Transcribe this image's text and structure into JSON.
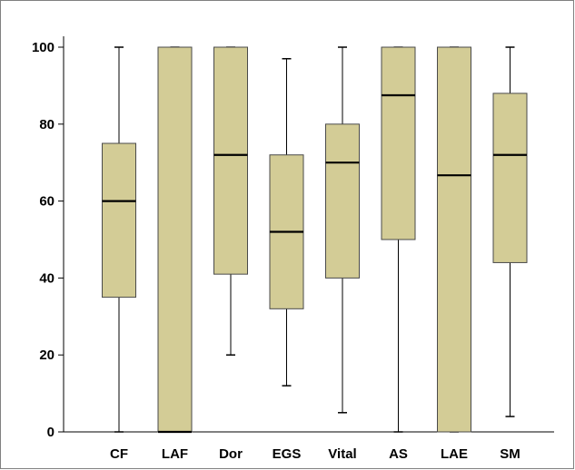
{
  "chart_data": {
    "type": "box",
    "title": "",
    "xlabel": "",
    "ylabel": "",
    "ylim": [
      0,
      100
    ],
    "yticks": [
      0,
      20,
      40,
      60,
      80,
      100
    ],
    "grid": false,
    "legend": "none",
    "categories": [
      "CF",
      "LAF",
      "Dor",
      "EGS",
      "Vital",
      "AS",
      "LAE",
      "SM"
    ],
    "boxes": [
      {
        "category": "CF",
        "min": 0,
        "q1": 35,
        "median": 60,
        "q3": 75,
        "max": 100
      },
      {
        "category": "LAF",
        "min": 0,
        "q1": 0,
        "median": 0,
        "q3": 100,
        "max": 100
      },
      {
        "category": "Dor",
        "min": 20,
        "q1": 41,
        "median": 72,
        "q3": 100,
        "max": 100
      },
      {
        "category": "EGS",
        "min": 12,
        "q1": 32,
        "median": 52,
        "q3": 72,
        "max": 97
      },
      {
        "category": "Vital",
        "min": 5,
        "q1": 40,
        "median": 70,
        "q3": 80,
        "max": 100
      },
      {
        "category": "AS",
        "min": 0,
        "q1": 50,
        "median": 87.5,
        "q3": 100,
        "max": 100
      },
      {
        "category": "LAE",
        "min": 0,
        "q1": 0,
        "median": 66.7,
        "q3": 100,
        "max": 100
      },
      {
        "category": "SM",
        "min": 4,
        "q1": 44,
        "median": 72,
        "q3": 88,
        "max": 100
      }
    ],
    "colors": {
      "box_fill": "#d3cc96",
      "box_stroke": "#4a4a4a",
      "median": "#000000",
      "whisker": "#000000",
      "frame": "#808080"
    }
  }
}
